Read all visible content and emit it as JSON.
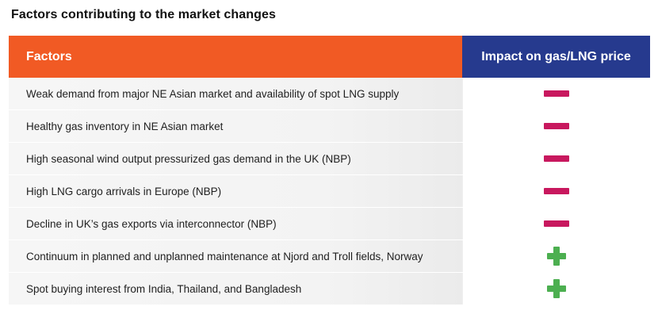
{
  "title": "Factors contributing to the market changes",
  "table": {
    "header": {
      "factors": "Factors",
      "impact": "Impact on gas/LNG price"
    },
    "rows": [
      {
        "factor": "Weak demand from major NE Asian market and availability of spot LNG supply",
        "impact": "negative"
      },
      {
        "factor": "Healthy gas inventory in NE Asian market",
        "impact": "negative"
      },
      {
        "factor": "High seasonal wind output pressurized gas demand in the UK (NBP)",
        "impact": "negative"
      },
      {
        "factor": "High LNG cargo arrivals in Europe (NBP)",
        "impact": "negative"
      },
      {
        "factor": "Decline in UK’s gas exports via interconnector (NBP)",
        "impact": "negative"
      },
      {
        "factor": "Continuum in planned and unplanned maintenance at Njord and Troll fields, Norway",
        "impact": "positive"
      },
      {
        "factor": "Spot buying interest from India, Thailand, and Bangladesh",
        "impact": "positive"
      }
    ]
  },
  "colors": {
    "factors_header": "#f15a24",
    "impact_header": "#263a8e",
    "negative": "#c8185e",
    "positive": "#4caf50"
  },
  "icons": {
    "negative": "minus-icon",
    "positive": "plus-icon"
  }
}
